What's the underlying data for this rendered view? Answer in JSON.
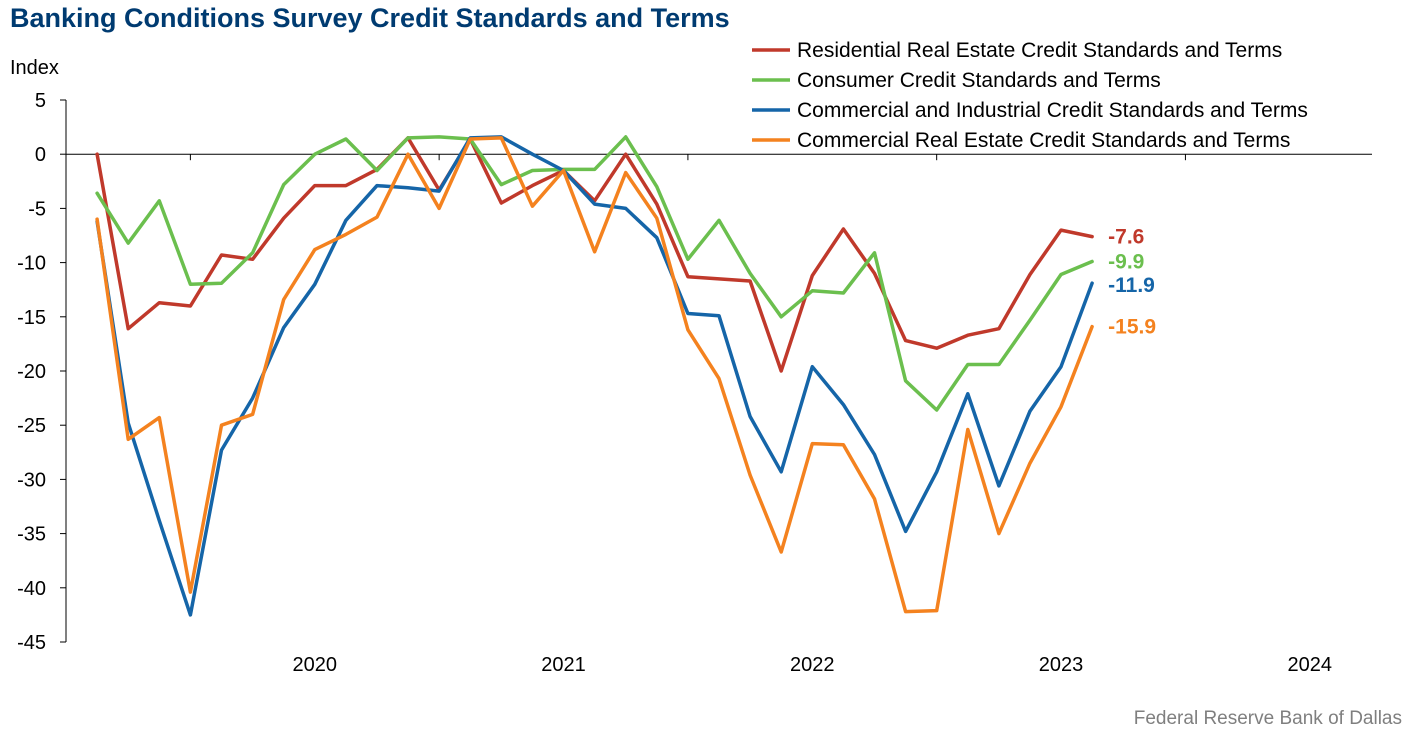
{
  "chart_data": {
    "type": "line",
    "title": "Banking Conditions Survey Credit Standards and Terms",
    "ylabel": "Index",
    "ylim": [
      -45,
      5
    ],
    "yticks": [
      5,
      0,
      -5,
      -10,
      -15,
      -20,
      -25,
      -30,
      -35,
      -40,
      -45
    ],
    "xlim": [
      2019.5,
      2024.75
    ],
    "xticks": [
      "2020",
      "2021",
      "2022",
      "2023",
      "2024"
    ],
    "grid": false,
    "legend_position": "top-right",
    "x": [
      2019.625,
      2019.75,
      2019.875,
      2020.0,
      2020.125,
      2020.25,
      2020.375,
      2020.5,
      2020.625,
      2020.75,
      2020.875,
      2021.0,
      2021.125,
      2021.25,
      2021.375,
      2021.5,
      2021.625,
      2021.75,
      2021.875,
      2022.0,
      2022.125,
      2022.25,
      2022.375,
      2022.5,
      2022.625,
      2022.75,
      2022.875,
      2023.0,
      2023.125,
      2023.25,
      2023.375,
      2023.5,
      2023.625
    ],
    "series": [
      {
        "name": "Residential Real Estate Credit Standards and Terms",
        "color": "#C0392B",
        "end_label": "-7.6",
        "values": [
          0,
          -16.1,
          -13.7,
          -14.0,
          -9.3,
          -9.7,
          -5.9,
          -2.9,
          -2.9,
          -1.4,
          1.5,
          -3.3,
          1.4,
          -4.5,
          -2.9,
          -1.5,
          -4.3,
          0,
          -4.6,
          -11.3,
          -11.5,
          -11.7,
          -20.0,
          -11.2,
          -6.9,
          -11.0,
          -17.2,
          -17.9,
          -16.7,
          -16.1,
          -11.1,
          -7.0,
          -7.6
        ]
      },
      {
        "name": "Consumer Credit Standards and Terms",
        "color": "#6BBF4E",
        "end_label": "-9.9",
        "values": [
          -3.6,
          -8.2,
          -4.3,
          -12.0,
          -11.9,
          -9.1,
          -2.8,
          0,
          1.4,
          -1.5,
          1.5,
          1.6,
          1.4,
          -2.8,
          -1.5,
          -1.4,
          -1.4,
          1.6,
          -3.0,
          -9.7,
          -6.1,
          -11.0,
          -15.0,
          -12.6,
          -12.8,
          -9.1,
          -20.9,
          -23.6,
          -19.4,
          -19.4,
          -15.3,
          -11.1,
          -9.9
        ]
      },
      {
        "name": "Commercial and Industrial Credit Standards and Terms",
        "color": "#1565A8",
        "end_label": "-11.9",
        "values": [
          -6.2,
          -24.8,
          -33.8,
          -42.5,
          -27.3,
          -22.5,
          -16.0,
          -12.0,
          -6.1,
          -2.9,
          -3.1,
          -3.4,
          1.5,
          1.6,
          0,
          -1.5,
          -4.6,
          -5.0,
          -7.7,
          -14.7,
          -14.9,
          -24.2,
          -29.3,
          -19.6,
          -23.1,
          -27.7,
          -34.8,
          -29.3,
          -22.1,
          -30.6,
          -23.7,
          -19.6,
          -11.9
        ]
      },
      {
        "name": "Commercial Real Estate Credit Standards and Terms",
        "color": "#F4821F",
        "end_label": "-15.9",
        "values": [
          -6.0,
          -26.3,
          -24.3,
          -40.4,
          -25.0,
          -24.0,
          -13.4,
          -8.8,
          -7.4,
          -5.8,
          0,
          -5.0,
          1.4,
          1.5,
          -4.8,
          -1.5,
          -9.0,
          -1.7,
          -5.9,
          -16.2,
          -20.7,
          -29.6,
          -36.7,
          -26.7,
          -26.8,
          -31.8,
          -42.2,
          -42.1,
          -25.4,
          -35.0,
          -28.5,
          -23.3,
          -15.9
        ]
      }
    ]
  },
  "source": "Federal Reserve Bank of Dallas"
}
